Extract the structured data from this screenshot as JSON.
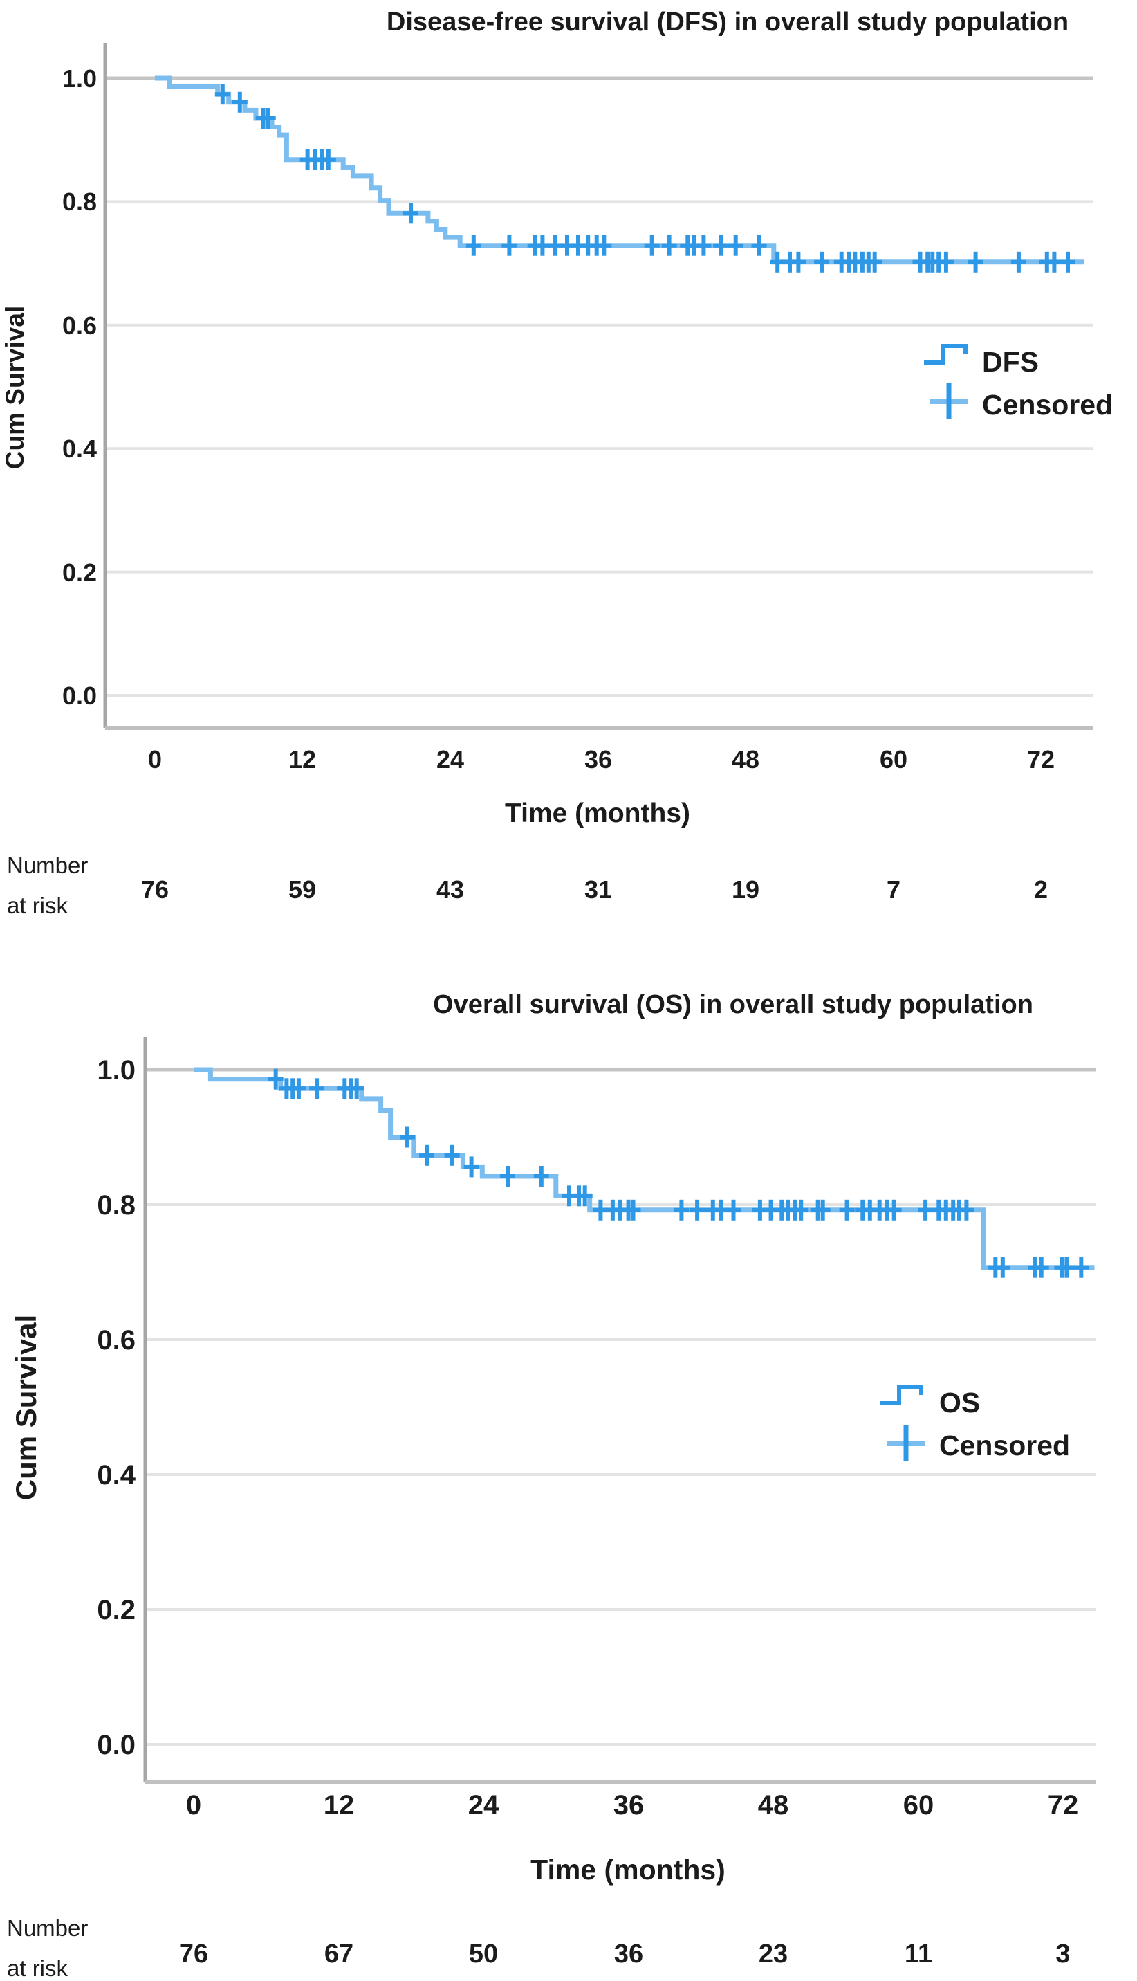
{
  "figure": {
    "background": "#ffffff",
    "description_visible_text_only": true
  },
  "colors": {
    "curve": "#7cbdf0",
    "curve_censor": "#2e97e6",
    "grid": "#e3e3e3",
    "grid_top": "#c4c4c4",
    "text": "#1b1b1b"
  },
  "charts": [
    {
      "id": "dfs",
      "title": "Disease-free survival (DFS) in overall study population",
      "ylabel": "Cum Survival",
      "xlabel": "Time (months)",
      "yticks": [
        "1.0",
        "0.8",
        "0.6",
        "0.4",
        "0.2",
        "0.0"
      ],
      "xticks": [
        "0",
        "12",
        "24",
        "36",
        "48",
        "60",
        "72"
      ],
      "legend": {
        "series_label": "DFS",
        "censored_label": "Censored"
      },
      "risk_header": {
        "line1": "Number",
        "line2": "at risk"
      },
      "risk_values": [
        "76",
        "59",
        "43",
        "31",
        "19",
        "7",
        "2"
      ],
      "chart_data": {
        "type": "line",
        "subtype": "kaplan-meier-step",
        "title": "Disease-free survival (DFS) in overall study population",
        "xlabel": "Time (months)",
        "ylabel": "Cum Survival",
        "xlim": [
          0,
          76
        ],
        "ylim": [
          0.0,
          1.05
        ],
        "xtick_values": [
          0,
          12,
          24,
          36,
          48,
          60,
          72
        ],
        "ytick_values": [
          1.0,
          0.8,
          0.6,
          0.4,
          0.2,
          0.0
        ],
        "grid": "horizontal",
        "legend_position": "right-middle",
        "number_at_risk": [
          76,
          59,
          43,
          31,
          19,
          7,
          2
        ],
        "steps": [
          [
            0,
            1.0
          ],
          [
            1.2,
            0.987
          ],
          [
            5.1,
            0.974
          ],
          [
            6.0,
            0.961
          ],
          [
            7.3,
            0.948
          ],
          [
            8.2,
            0.935
          ],
          [
            9.5,
            0.921
          ],
          [
            10.1,
            0.908
          ],
          [
            10.7,
            0.868
          ],
          [
            15.3,
            0.855
          ],
          [
            16.1,
            0.842
          ],
          [
            17.6,
            0.822
          ],
          [
            18.3,
            0.802
          ],
          [
            19.0,
            0.781
          ],
          [
            22.2,
            0.768
          ],
          [
            22.9,
            0.755
          ],
          [
            23.6,
            0.742
          ],
          [
            24.8,
            0.729
          ],
          [
            50.3,
            0.702
          ]
        ],
        "curve_end": 75.5,
        "censor_marks": [
          [
            5.5,
            0.974
          ],
          [
            6.9,
            0.961
          ],
          [
            8.8,
            0.935
          ],
          [
            9.2,
            0.935
          ],
          [
            12.4,
            0.868
          ],
          [
            13.0,
            0.868
          ],
          [
            13.6,
            0.868
          ],
          [
            14.1,
            0.868
          ],
          [
            20.8,
            0.781
          ],
          [
            25.9,
            0.729
          ],
          [
            28.8,
            0.729
          ],
          [
            30.9,
            0.729
          ],
          [
            31.5,
            0.729
          ],
          [
            32.5,
            0.729
          ],
          [
            33.5,
            0.729
          ],
          [
            34.4,
            0.729
          ],
          [
            35.2,
            0.729
          ],
          [
            35.9,
            0.729
          ],
          [
            36.5,
            0.729
          ],
          [
            40.4,
            0.729
          ],
          [
            41.8,
            0.729
          ],
          [
            43.3,
            0.729
          ],
          [
            43.8,
            0.729
          ],
          [
            44.6,
            0.729
          ],
          [
            46.0,
            0.729
          ],
          [
            47.2,
            0.729
          ],
          [
            49.1,
            0.729
          ],
          [
            50.6,
            0.702
          ],
          [
            51.6,
            0.702
          ],
          [
            52.3,
            0.702
          ],
          [
            54.2,
            0.702
          ],
          [
            55.8,
            0.702
          ],
          [
            56.4,
            0.702
          ],
          [
            56.9,
            0.702
          ],
          [
            57.5,
            0.702
          ],
          [
            58.0,
            0.702
          ],
          [
            58.5,
            0.702
          ],
          [
            62.2,
            0.702
          ],
          [
            62.8,
            0.702
          ],
          [
            63.2,
            0.702
          ],
          [
            63.7,
            0.702
          ],
          [
            64.3,
            0.702
          ],
          [
            66.7,
            0.702
          ],
          [
            70.2,
            0.702
          ],
          [
            72.5,
            0.702
          ],
          [
            73.1,
            0.702
          ],
          [
            74.2,
            0.702
          ]
        ]
      }
    },
    {
      "id": "os",
      "title": "Overall survival (OS) in overall study population",
      "ylabel": "Cum Survival",
      "xlabel": "Time (months)",
      "yticks": [
        "1.0",
        "0.8",
        "0.6",
        "0.4",
        "0.2",
        "0.0"
      ],
      "xticks": [
        "0",
        "12",
        "24",
        "36",
        "48",
        "60",
        "72"
      ],
      "legend": {
        "series_label": "OS",
        "censored_label": "Censored"
      },
      "risk_header": {
        "line1": "Number",
        "line2": "at risk"
      },
      "risk_values": [
        "76",
        "67",
        "50",
        "36",
        "23",
        "11",
        "3"
      ],
      "chart_data": {
        "type": "line",
        "subtype": "kaplan-meier-step",
        "title": "Overall survival (OS) in overall study population",
        "xlabel": "Time (months)",
        "ylabel": "Cum Survival",
        "xlim": [
          0,
          76
        ],
        "ylim": [
          0.0,
          1.05
        ],
        "xtick_values": [
          0,
          12,
          24,
          36,
          48,
          60,
          72
        ],
        "ytick_values": [
          1.0,
          0.8,
          0.6,
          0.4,
          0.2,
          0.0
        ],
        "grid": "horizontal",
        "legend_position": "right-middle",
        "number_at_risk": [
          76,
          67,
          50,
          36,
          23,
          11,
          3
        ],
        "steps": [
          [
            0,
            1.0
          ],
          [
            1.4,
            0.986
          ],
          [
            7.2,
            0.972
          ],
          [
            13.9,
            0.957
          ],
          [
            15.5,
            0.94
          ],
          [
            16.3,
            0.9
          ],
          [
            18.2,
            0.873
          ],
          [
            22.3,
            0.856
          ],
          [
            23.9,
            0.842
          ],
          [
            30.0,
            0.813
          ],
          [
            32.8,
            0.792
          ],
          [
            65.4,
            0.707
          ]
        ],
        "curve_end": 74.6,
        "censor_marks": [
          [
            6.8,
            0.986
          ],
          [
            7.7,
            0.972
          ],
          [
            8.2,
            0.972
          ],
          [
            8.7,
            0.972
          ],
          [
            10.2,
            0.972
          ],
          [
            12.5,
            0.972
          ],
          [
            13.0,
            0.972
          ],
          [
            13.5,
            0.972
          ],
          [
            17.7,
            0.9
          ],
          [
            19.3,
            0.873
          ],
          [
            21.4,
            0.873
          ],
          [
            23.0,
            0.856
          ],
          [
            26.0,
            0.842
          ],
          [
            28.8,
            0.842
          ],
          [
            31.1,
            0.813
          ],
          [
            31.9,
            0.813
          ],
          [
            32.4,
            0.813
          ],
          [
            33.7,
            0.792
          ],
          [
            34.7,
            0.792
          ],
          [
            35.3,
            0.792
          ],
          [
            36.0,
            0.792
          ],
          [
            36.4,
            0.792
          ],
          [
            40.4,
            0.792
          ],
          [
            41.7,
            0.792
          ],
          [
            43.0,
            0.792
          ],
          [
            43.7,
            0.792
          ],
          [
            44.7,
            0.792
          ],
          [
            46.9,
            0.792
          ],
          [
            47.8,
            0.792
          ],
          [
            48.7,
            0.792
          ],
          [
            49.2,
            0.792
          ],
          [
            49.8,
            0.792
          ],
          [
            50.3,
            0.792
          ],
          [
            51.7,
            0.792
          ],
          [
            52.1,
            0.792
          ],
          [
            54.1,
            0.792
          ],
          [
            55.4,
            0.792
          ],
          [
            56.0,
            0.792
          ],
          [
            56.8,
            0.792
          ],
          [
            57.4,
            0.792
          ],
          [
            58.0,
            0.792
          ],
          [
            60.6,
            0.792
          ],
          [
            61.7,
            0.792
          ],
          [
            62.3,
            0.792
          ],
          [
            62.9,
            0.792
          ],
          [
            63.4,
            0.792
          ],
          [
            64.0,
            0.792
          ],
          [
            66.4,
            0.707
          ],
          [
            67.0,
            0.707
          ],
          [
            69.7,
            0.707
          ],
          [
            70.2,
            0.707
          ],
          [
            71.9,
            0.707
          ],
          [
            72.3,
            0.707
          ],
          [
            73.5,
            0.707
          ]
        ]
      }
    }
  ]
}
